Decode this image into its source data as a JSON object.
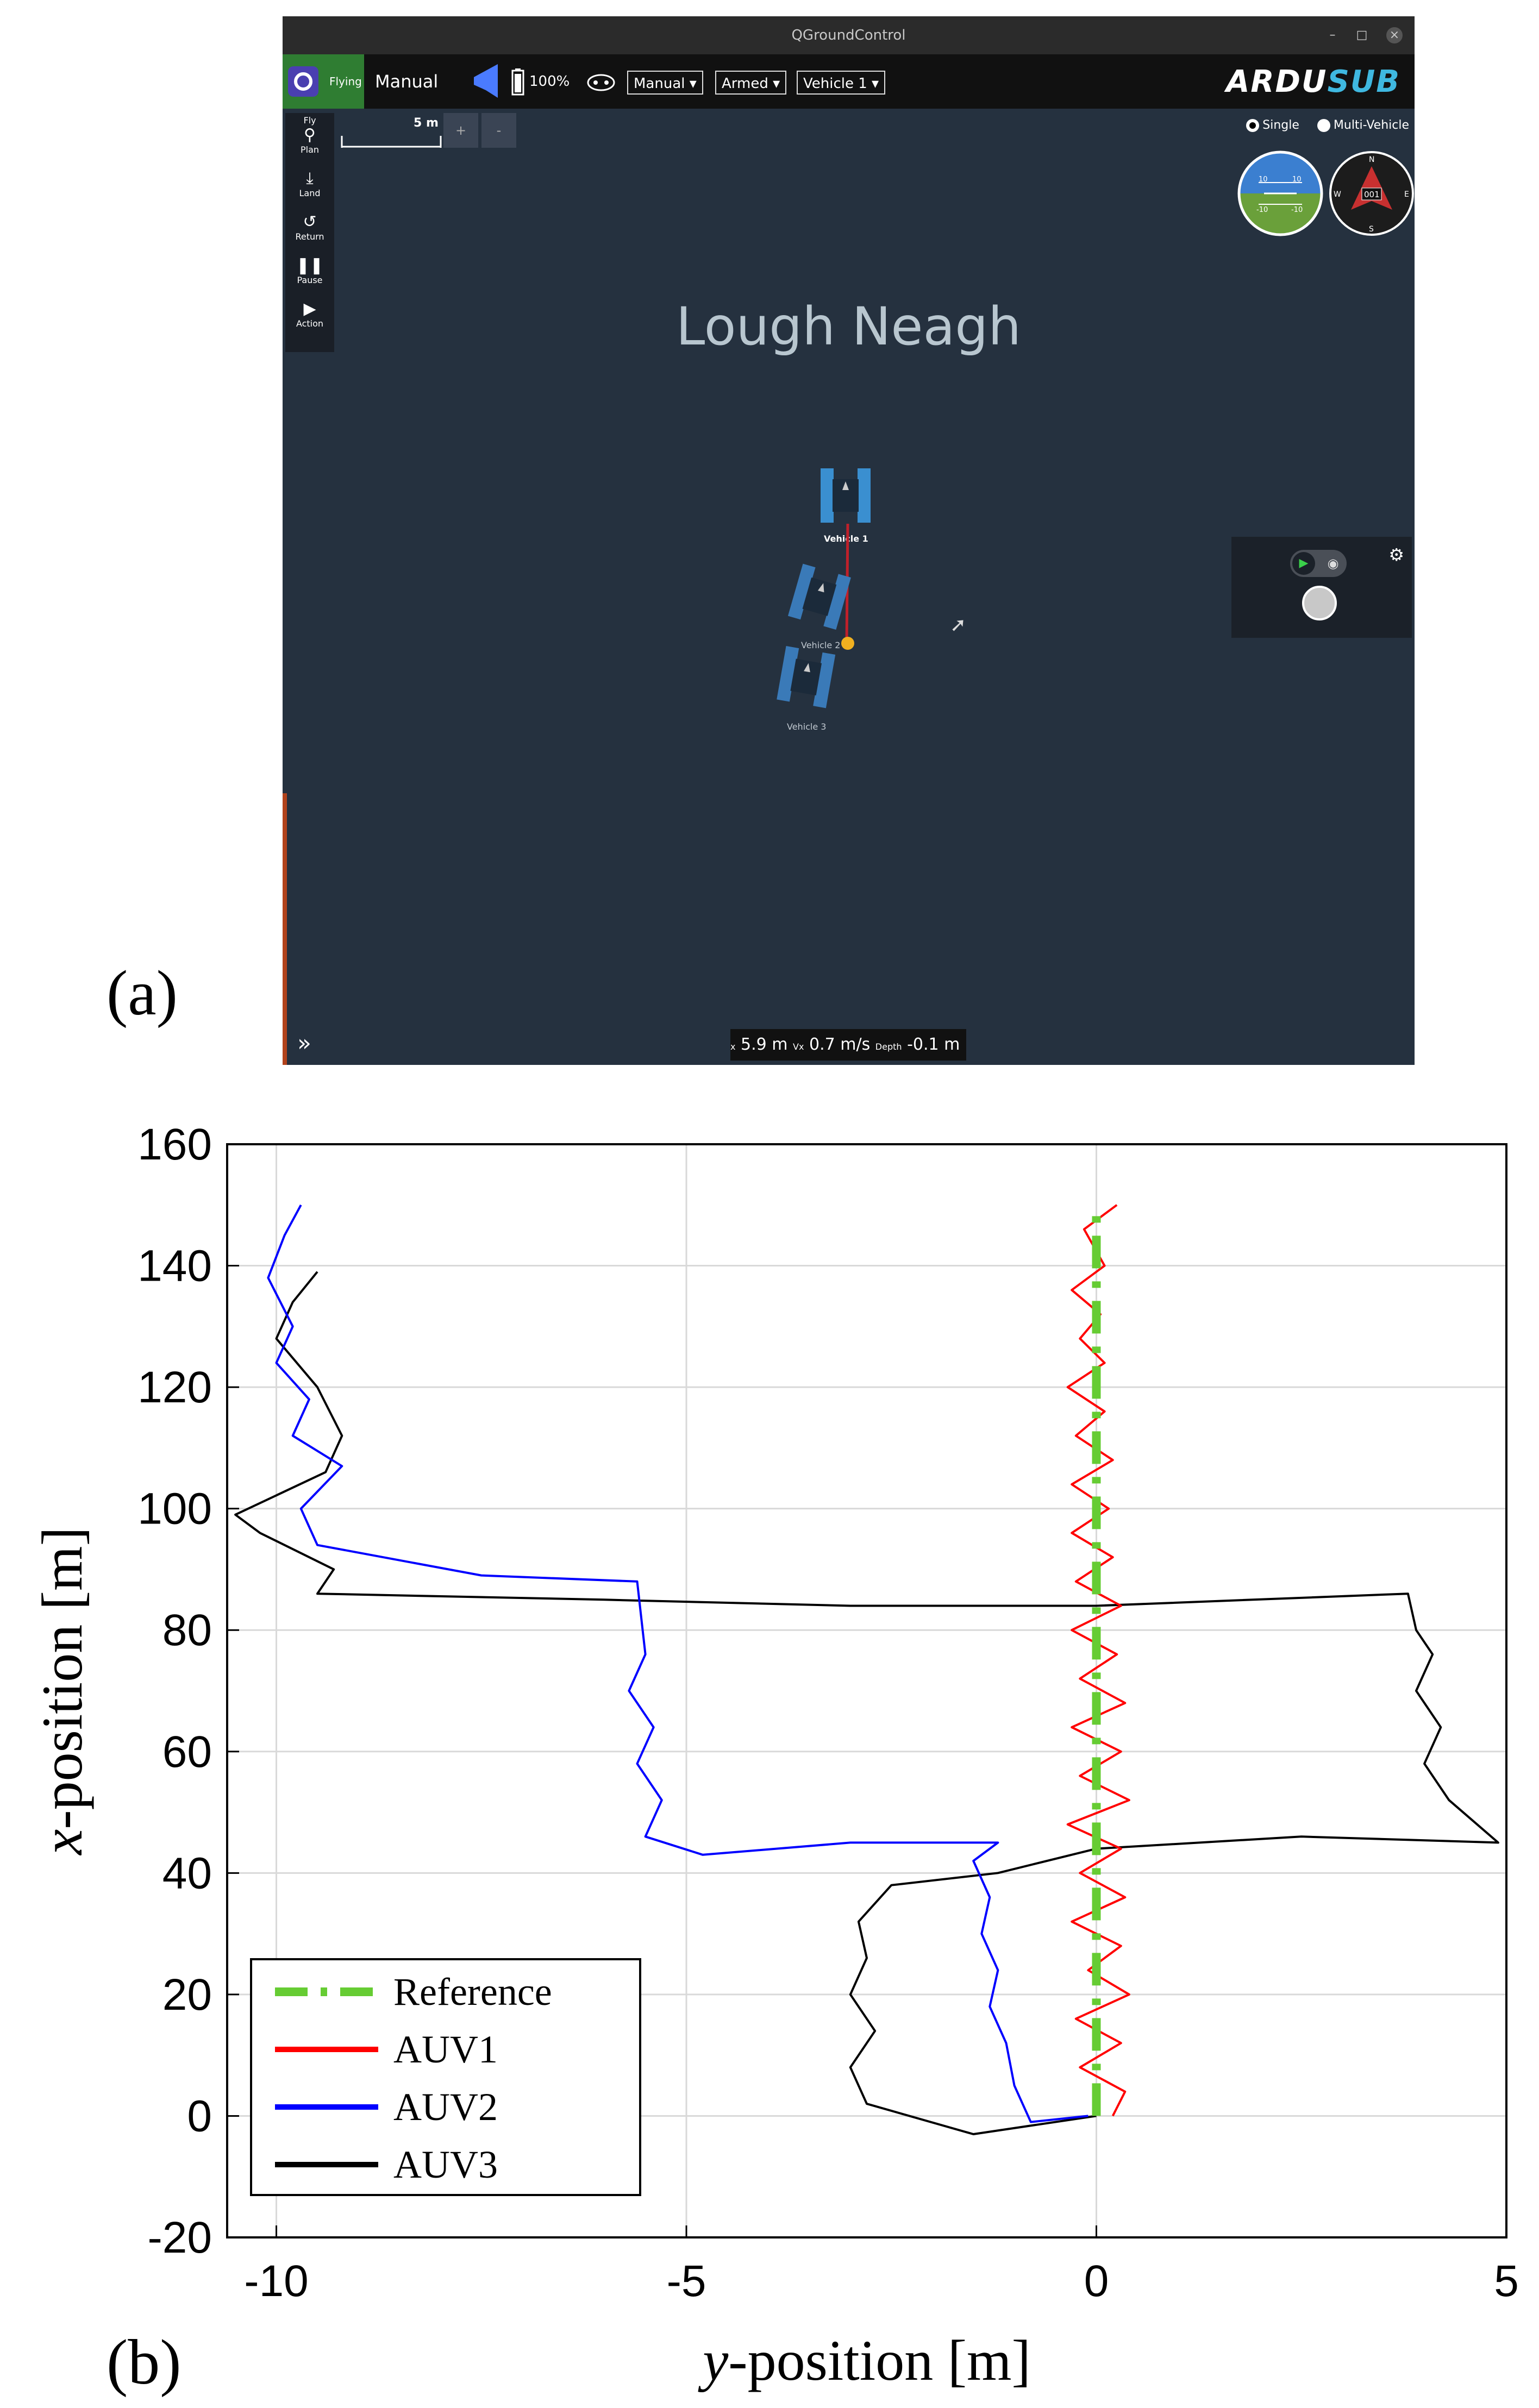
{
  "figure": {
    "panel_a_label": "(a)",
    "panel_b_label": "(b)"
  },
  "app": {
    "window_title": "QGroundControl",
    "window_buttons": [
      "–",
      "□",
      "×"
    ],
    "toolbar": {
      "status": "Flying",
      "mode": "Manual",
      "battery": "100%",
      "flight_mode_dropdown": "Manual",
      "arm_dropdown": "Armed",
      "vehicle_dropdown": "Vehicle 1",
      "brand": "ARDUSUB",
      "brand_color": "#3fb8e0"
    },
    "fly_panel": [
      {
        "label": "Fly",
        "icon": "fly-icon"
      },
      {
        "label": "Plan",
        "icon": "plan-icon"
      },
      {
        "label": "Land",
        "icon": "land-icon"
      },
      {
        "label": "Return",
        "icon": "return-icon"
      },
      {
        "label": "Pause",
        "icon": "pause-icon"
      },
      {
        "label": "Action",
        "icon": "action-icon"
      }
    ],
    "scale_label": "5 m",
    "zoom_in": "+",
    "zoom_out": "-",
    "map_name": "Lough Neagh",
    "vehicles": [
      "Vehicle 1",
      "Vehicle 2",
      "Vehicle 3"
    ],
    "view_options": {
      "single": "Single",
      "multi": "Multi-Vehicle",
      "selected": "Single"
    },
    "instruments": {
      "attitude_top_left": "10",
      "attitude_top_right": "10",
      "attitude_bottom_left": "-10",
      "attitude_bottom_right": "-10",
      "compass_heading": "001",
      "compass_n": "N",
      "compass_e": "E",
      "compass_s": "S",
      "compass_w": "W"
    },
    "telemetry": {
      "x_label": "x",
      "x_value": "5.9 m",
      "vx_label": "Vx",
      "vx_value": "0.7 m/s",
      "depth_label": "Depth",
      "depth_value": "-0.1 m"
    }
  },
  "chart_data": {
    "type": "line",
    "xlabel_var": "y",
    "xlabel_rest": "-position [m]",
    "ylabel_var": "x",
    "ylabel_rest": "-position [m]",
    "xlim": [
      -10.6,
      5
    ],
    "ylim": [
      -20,
      160
    ],
    "xticks": [
      -10,
      -5,
      0,
      5
    ],
    "yticks": [
      -20,
      0,
      20,
      40,
      60,
      80,
      100,
      120,
      140,
      160
    ],
    "grid": true,
    "legend_position": "bottom-left",
    "series": [
      {
        "name": "Reference",
        "color": "#66cc33",
        "style": "dashdot",
        "x": [
          0,
          0
        ],
        "y": [
          0,
          150
        ]
      },
      {
        "name": "AUV1",
        "color": "#ff0000",
        "style": "solid",
        "x": [
          0.2,
          0.35,
          -0.2,
          0.3,
          -0.25,
          0.4,
          -0.1,
          0.3,
          -0.3,
          0.35,
          -0.2,
          0.3,
          -0.35,
          0.4,
          -0.2,
          0.3,
          -0.3,
          0.35,
          -0.2,
          0.25,
          -0.3,
          0.3,
          -0.25,
          0.2,
          -0.3,
          0.15,
          -0.3,
          0.2,
          -0.25,
          0.1,
          -0.35,
          0.1,
          -0.2,
          0.05,
          -0.3,
          0.1,
          -0.15,
          0.25
        ],
        "y": [
          0,
          4,
          8,
          12,
          16,
          20,
          24,
          28,
          32,
          36,
          40,
          44,
          48,
          52,
          56,
          60,
          64,
          68,
          72,
          76,
          80,
          84,
          88,
          92,
          96,
          100,
          104,
          108,
          112,
          116,
          120,
          124,
          128,
          132,
          136,
          140,
          146,
          150
        ]
      },
      {
        "name": "AUV2",
        "color": "#0000ff",
        "style": "solid",
        "x": [
          -0.1,
          -0.8,
          -1.0,
          -1.1,
          -1.3,
          -1.2,
          -1.4,
          -1.3,
          -1.5,
          -1.2,
          -3,
          -4.8,
          -5.5,
          -5.3,
          -5.6,
          -5.4,
          -5.7,
          -5.5,
          -5.6,
          -7.5,
          -9.5,
          -9.7,
          -9.2,
          -9.8,
          -9.6,
          -10,
          -9.8,
          -10.1,
          -9.9,
          -9.7
        ],
        "y": [
          0,
          -1,
          5,
          12,
          18,
          24,
          30,
          36,
          42,
          45,
          45,
          43,
          46,
          52,
          58,
          64,
          70,
          76,
          88,
          89,
          94,
          100,
          107,
          112,
          118,
          124,
          130,
          138,
          145,
          150
        ],
        "segments_note": ""
      },
      {
        "name": "AUV3",
        "color": "#000000",
        "style": "solid",
        "x": [
          0,
          -1.5,
          -2.8,
          -3.0,
          -2.7,
          -3.0,
          -2.8,
          -2.9,
          -2.5,
          -1.2,
          0,
          2.5,
          4.9,
          4.3,
          4.0,
          4.2,
          3.9,
          4.1,
          3.9,
          3.8,
          0,
          -3,
          -6,
          -9.5,
          -9.3,
          -10.2,
          -10.5,
          -9.4,
          -9.2,
          -9.5,
          -10.0,
          -9.8,
          -9.5
        ],
        "y": [
          0,
          -3,
          2,
          8,
          14,
          20,
          26,
          32,
          38,
          40,
          44,
          46,
          45,
          52,
          58,
          64,
          70,
          76,
          80,
          86,
          84,
          84,
          85,
          86,
          90,
          96,
          99,
          106,
          112,
          120,
          128,
          134,
          139
        ]
      }
    ]
  }
}
